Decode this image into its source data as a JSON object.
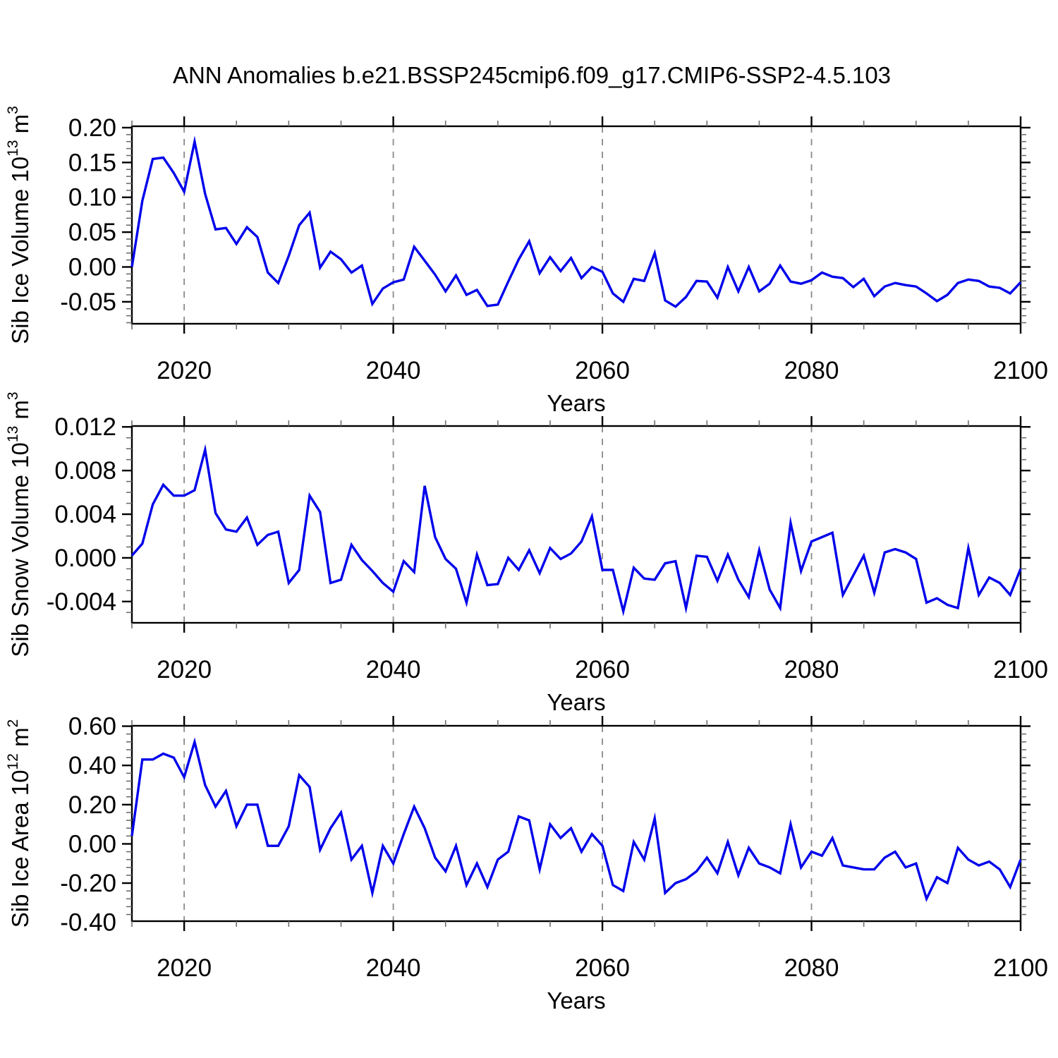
{
  "title": "ANN Anomalies b.e21.BSSP245cmip6.f09_g17.CMIP6-SSP2-4.5.103",
  "line_color": "#0000EB",
  "background": "#FFFFFF",
  "x_axis": {
    "label": "Years",
    "lim": [
      2015,
      2100
    ],
    "ticks": [
      2020,
      2040,
      2060,
      2080,
      2100
    ],
    "tick_labels": [
      "2020",
      "2040",
      "2060",
      "2080",
      "2100"
    ],
    "minor_step": 5,
    "gridlines": [
      2020,
      2040,
      2060,
      2080
    ]
  },
  "chart_data": [
    {
      "type": "line",
      "name": "sib-ice-volume",
      "ylabel": "Sib Ice Volume 10^13 m^3",
      "ylim": [
        -0.0815,
        0.202
      ],
      "yticks": [
        0.2,
        0.15,
        0.1,
        0.05,
        0.0,
        -0.05
      ],
      "ytick_labels": [
        "0.20",
        "0.15",
        "0.10",
        "0.05",
        "0.00",
        "-0.05"
      ],
      "ytick_major": 0.05,
      "ytick_minor": 0.01,
      "x_start": 2015,
      "x_end": 2100,
      "x_step": 1,
      "values": [
        0.0,
        0.095,
        0.155,
        0.157,
        0.135,
        0.108,
        0.18,
        0.105,
        0.054,
        0.056,
        0.033,
        0.057,
        0.043,
        -0.008,
        -0.023,
        0.016,
        0.06,
        0.078,
        -0.001,
        0.022,
        0.011,
        -0.008,
        0.002,
        -0.053,
        -0.031,
        -0.022,
        -0.018,
        0.029,
        0.009,
        -0.011,
        -0.035,
        -0.012,
        -0.04,
        -0.033,
        -0.056,
        -0.054,
        -0.021,
        0.011,
        0.037,
        -0.009,
        0.014,
        -0.006,
        0.013,
        -0.016,
        0.0,
        -0.007,
        -0.038,
        -0.05,
        -0.017,
        -0.02,
        0.02,
        -0.048,
        -0.057,
        -0.043,
        -0.02,
        -0.021,
        -0.044,
        0.0,
        -0.035,
        0.0,
        -0.035,
        -0.024,
        0.002,
        -0.021,
        -0.024,
        -0.019,
        -0.008,
        -0.014,
        -0.016,
        -0.029,
        -0.017,
        -0.042,
        -0.028,
        -0.023,
        -0.026,
        -0.028,
        -0.038,
        -0.049,
        -0.04,
        -0.023,
        -0.018,
        -0.02,
        -0.028,
        -0.03,
        -0.038,
        -0.022
      ]
    },
    {
      "type": "line",
      "name": "sib-snow-volume",
      "ylabel": "Sib Snow Volume 10^13 m^3",
      "ylim": [
        -0.00595,
        0.01208
      ],
      "yticks": [
        0.012,
        0.008,
        0.004,
        0.0,
        -0.004
      ],
      "ytick_labels": [
        "0.012",
        "0.008",
        "0.004",
        "0.000",
        "-0.004"
      ],
      "ytick_major": 0.004,
      "ytick_minor": 0.001,
      "x_start": 2015,
      "x_end": 2100,
      "x_step": 1,
      "values": [
        0.0002,
        0.0013,
        0.0049,
        0.0067,
        0.0057,
        0.0057,
        0.0062,
        0.0099,
        0.0041,
        0.0026,
        0.0024,
        0.0037,
        0.0012,
        0.0021,
        0.0024,
        -0.0023,
        -0.0011,
        0.0057,
        0.0042,
        -0.0023,
        -0.002,
        0.0012,
        -0.0002,
        -0.0012,
        -0.0023,
        -0.0031,
        -0.0003,
        -0.0013,
        0.0066,
        0.0019,
        -0.0001,
        -0.001,
        -0.0041,
        0.0003,
        -0.0025,
        -0.0024,
        0.0,
        -0.0011,
        0.0007,
        -0.0014,
        0.0009,
        -0.0001,
        0.0004,
        0.0015,
        0.0038,
        -0.0011,
        -0.0011,
        -0.0049,
        -0.0009,
        -0.0019,
        -0.002,
        -0.0005,
        -0.0003,
        -0.0046,
        0.0002,
        0.0001,
        -0.0021,
        0.0003,
        -0.002,
        -0.0036,
        0.0007,
        -0.0029,
        -0.0046,
        0.0032,
        -0.0012,
        0.0015,
        0.0019,
        0.0023,
        -0.0034,
        -0.0016,
        0.0002,
        -0.0032,
        0.0005,
        0.0008,
        0.0005,
        -0.0001,
        -0.0041,
        -0.0037,
        -0.0043,
        -0.0046,
        0.0009,
        -0.0034,
        -0.0018,
        -0.0023,
        -0.0034,
        -0.001
      ]
    },
    {
      "type": "line",
      "name": "sib-ice-area",
      "ylabel": "Sib Ice Area 10^12 m^2",
      "ylim": [
        -0.394,
        0.602
      ],
      "yticks": [
        0.6,
        0.4,
        0.2,
        0.0,
        -0.2,
        -0.4
      ],
      "ytick_labels": [
        "0.60",
        "0.40",
        "0.20",
        "0.00",
        "-0.20",
        "-0.40"
      ],
      "ytick_major": 0.2,
      "ytick_minor": 0.04,
      "x_start": 2015,
      "x_end": 2100,
      "x_step": 1,
      "values": [
        0.04,
        0.43,
        0.43,
        0.46,
        0.44,
        0.34,
        0.52,
        0.3,
        0.19,
        0.27,
        0.09,
        0.2,
        0.2,
        -0.01,
        -0.01,
        0.09,
        0.35,
        0.29,
        -0.03,
        0.08,
        0.16,
        -0.08,
        -0.01,
        -0.25,
        -0.01,
        -0.1,
        0.05,
        0.19,
        0.08,
        -0.07,
        -0.14,
        -0.01,
        -0.21,
        -0.1,
        -0.22,
        -0.08,
        -0.04,
        0.14,
        0.12,
        -0.13,
        0.1,
        0.03,
        0.08,
        -0.04,
        0.05,
        -0.01,
        -0.21,
        -0.24,
        0.01,
        -0.08,
        0.13,
        -0.25,
        -0.2,
        -0.18,
        -0.14,
        -0.07,
        -0.15,
        0.01,
        -0.16,
        -0.02,
        -0.1,
        -0.12,
        -0.15,
        0.1,
        -0.12,
        -0.04,
        -0.06,
        0.03,
        -0.11,
        -0.12,
        -0.13,
        -0.13,
        -0.07,
        -0.04,
        -0.12,
        -0.1,
        -0.28,
        -0.17,
        -0.2,
        -0.02,
        -0.08,
        -0.11,
        -0.09,
        -0.13,
        -0.22,
        -0.08
      ]
    }
  ]
}
